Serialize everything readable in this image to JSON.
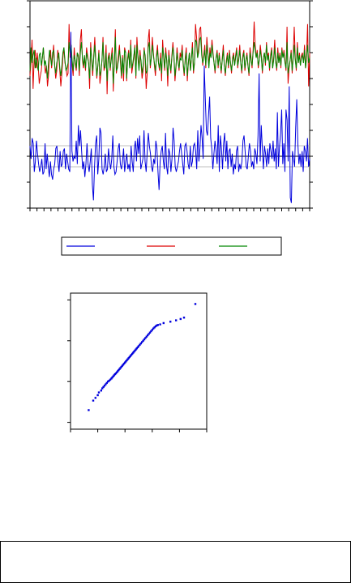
{
  "chart_data": [
    {
      "type": "line",
      "title": "",
      "xlabel": "",
      "ylabel": "",
      "left_axis": {
        "label": "",
        "ticks": []
      },
      "right_axis": {
        "label": "",
        "ticks": []
      },
      "grid": false,
      "reference_lines": [],
      "legend": {
        "placement": "bottom",
        "entries": []
      },
      "series": [
        {
          "axis": "left",
          "color": "#0000dd",
          "values": [
            0.4,
            -0.1,
            0.7,
            0.5,
            -0.6,
            -0.2,
            0.6,
            0.1,
            -0.3,
            -0.6,
            -0.4,
            -0.1,
            -0.7,
            -0.6,
            0.5,
            -0.5,
            0.1,
            -0.4,
            -0.8,
            -0.2,
            -0.7,
            -0.9,
            -0.5,
            -0.3,
            0.3,
            0.4,
            -0.2,
            -0.6,
            0.2,
            -0.4,
            -0.3,
            0.2,
            0.3,
            -0.5,
            0.1,
            -0.2,
            -0.5,
            -0.6,
            4.8,
            0.2,
            -0.2,
            0.0,
            -0.1,
            0.6,
            -0.3,
            1.2,
            0.4,
            1.0,
            0.2,
            -0.5,
            -0.2,
            -0.8,
            -0.3,
            0.5,
            -0.3,
            -0.6,
            -0.2,
            0.3,
            -1.1,
            -1.7,
            -0.4,
            0.5,
            0.8,
            -0.7,
            -0.1,
            1.1,
            0.9,
            -0.5,
            -0.7,
            -0.4,
            0.1,
            -0.6,
            -0.5,
            0.3,
            -0.2,
            -0.5,
            -0.1,
            0.8,
            -0.4,
            -0.7,
            -0.6,
            -0.2,
            0.3,
            0.5,
            -0.3,
            -0.5,
            -0.2,
            0.3,
            -0.6,
            -0.2,
            0.1,
            -0.5,
            -0.3,
            -0.6,
            0.4,
            -0.2,
            -0.6,
            0.3,
            0.6,
            -0.2,
            0.7,
            0.1,
            0.8,
            -0.5,
            -0.3,
            -0.1,
            1.0,
            -0.2,
            -0.6,
            0.2,
            0.9,
            0.4,
            0.1,
            -0.4,
            -0.6,
            -0.1,
            -0.3,
            0.6,
            0.3,
            -0.6,
            -1.3,
            -0.2,
            0.2,
            0.4,
            -0.2,
            -0.5,
            0.9,
            -0.4,
            -0.7,
            0.3,
            0.1,
            -0.6,
            -0.1,
            1.1,
            0.6,
            -0.4,
            -0.6,
            -0.4,
            -0.2,
            0.2,
            0.5,
            0.1,
            -0.3,
            -0.7,
            0.4,
            0.5,
            0.2,
            -0.3,
            -0.5,
            0.4,
            -0.4,
            -0.2,
            0.4,
            0.5,
            0.2,
            -0.5,
            1.0,
            -0.2,
            0.3,
            1.2,
            0.7,
            -0.1,
            3.5,
            2.2,
            1.0,
            0.8,
            1.6,
            2.3,
            0.7,
            0.3,
            -0.5,
            0.1,
            0.6,
            0.2,
            -0.3,
            1.2,
            -0.6,
            0.8,
            0.3,
            -0.5,
            0.5,
            0.9,
            -0.2,
            0.6,
            -0.5,
            0.2,
            0.3,
            -0.4,
            0.1,
            -0.7,
            -0.3,
            -0.5,
            0.2,
            0.4,
            -0.6,
            -0.3,
            -0.5,
            -0.2,
            0.6,
            0.8,
            0.2,
            -0.4,
            -0.5,
            0.0,
            0.5,
            0.2,
            -0.4,
            -0.2,
            -0.5,
            0.3,
            0.1,
            -0.3,
            0.8,
            3.2,
            -0.2,
            1.2,
            0.3,
            -0.5,
            0.4,
            0.1,
            -0.4,
            0.3,
            -0.3,
            0.5,
            0.2,
            -0.1,
            0.6,
            -0.2,
            0.3,
            -0.5,
            1.7,
            -0.4,
            0.4,
            0.9,
            1.8,
            -0.3,
            0.5,
            -0.6,
            1.8,
            1.4,
            -0.2,
            2.7,
            -1.6,
            -1.8,
            0.2,
            -0.1,
            -0.4,
            1.1,
            2.2,
            0.5,
            -0.3,
            0.1,
            -0.4,
            0.2,
            -0.6,
            0.4,
            0.2,
            -0.2,
            0.7,
            -0.4,
            -0.1
          ]
        },
        {
          "axis": "right",
          "color": "#dd0000",
          "values": [
            5.1,
            5.7,
            6.5,
            4.6,
            5.7,
            6.1,
            5.4,
            6.0,
            5.5,
            4.8,
            5.1,
            5.3,
            5.8,
            6.2,
            5.6,
            5.2,
            5.5,
            4.7,
            5.1,
            5.9,
            6.1,
            5.4,
            5.8,
            6.3,
            5.5,
            5.0,
            5.3,
            6.1,
            5.8,
            5.3,
            4.7,
            5.2,
            5.8,
            6.2,
            5.6,
            5.4,
            5.1,
            5.2,
            7.1,
            5.8,
            6.3,
            5.5,
            5.1,
            6.2,
            5.6,
            5.3,
            6.0,
            5.8,
            5.1,
            6.5,
            6.9,
            5.7,
            5.4,
            5.8,
            5.3,
            6.2,
            5.9,
            5.6,
            4.6,
            6.4,
            5.7,
            5.1,
            5.9,
            6.6,
            5.7,
            5.0,
            5.5,
            6.1,
            4.8,
            5.2,
            5.7,
            6.6,
            5.3,
            5.5,
            6.3,
            4.4,
            5.8,
            6.0,
            5.3,
            5.8,
            6.2,
            4.5,
            5.7,
            6.9,
            5.2,
            5.5,
            5.9,
            6.3,
            5.6,
            5.0,
            5.9,
            4.9,
            6.2,
            6.0,
            4.9,
            5.8,
            6.1,
            5.4,
            6.5,
            5.2,
            5.5,
            5.8,
            6.3,
            5.0,
            6.6,
            5.9,
            5.4,
            6.1,
            5.6,
            5.0,
            5.3,
            6.2,
            5.8,
            4.6,
            5.2,
            6.5,
            6.9,
            5.4,
            5.8,
            6.6,
            6.0,
            5.5,
            5.1,
            5.9,
            6.3,
            5.6,
            5.3,
            6.0,
            4.9,
            6.5,
            5.8,
            5.3,
            6.2,
            5.7,
            4.7,
            6.1,
            5.6,
            5.2,
            5.9,
            6.4,
            5.8,
            4.9,
            5.4,
            6.2,
            5.7,
            5.3,
            6.0,
            5.8,
            6.3,
            5.5,
            5.1,
            5.8,
            6.2,
            4.9,
            5.6,
            6.0,
            5.3,
            5.8,
            6.4,
            5.2,
            5.6,
            7.1,
            6.6,
            5.8,
            6.2,
            6.9,
            7.0,
            6.1,
            5.5,
            5.9,
            6.3,
            5.4,
            6.6,
            6.0,
            5.5,
            6.2,
            5.8,
            6.5,
            6.0,
            5.6,
            5.2,
            5.8,
            6.1,
            5.4,
            6.0,
            5.6,
            5.2,
            5.8,
            6.3,
            5.5,
            5.1,
            5.7,
            6.0,
            5.4,
            6.1,
            5.6,
            5.2,
            5.8,
            6.0,
            5.5,
            5.9,
            6.2,
            5.4,
            5.8,
            6.3,
            5.6,
            5.2,
            5.9,
            6.1,
            5.3,
            5.7,
            6.0,
            5.5,
            5.1,
            6.2,
            5.8,
            5.4,
            6.1,
            7.2,
            6.3,
            5.8,
            6.1,
            5.4,
            5.7,
            6.3,
            5.9,
            5.2,
            5.8,
            6.0,
            5.5,
            6.4,
            5.8,
            6.0,
            5.3,
            5.9,
            6.2,
            5.4,
            5.8,
            6.5,
            5.7,
            5.3,
            6.2,
            5.6,
            6.0,
            5.4,
            6.2,
            5.8,
            6.1,
            5.7,
            5.3,
            7.0,
            4.8,
            5.4,
            5.7,
            6.1,
            5.2,
            5.9,
            7.0,
            5.8,
            5.3,
            6.4,
            5.6,
            6.0,
            5.5,
            5.9,
            6.0,
            5.6,
            6.3,
            5.4,
            5.9,
            7.1,
            4.7,
            6.0
          ]
        },
        {
          "axis": "right",
          "color": "#008800",
          "values": [
            5.3,
            6.2,
            5.6,
            5.9,
            6.1,
            5.4,
            5.8,
            5.5,
            5.3,
            5.9,
            6.0,
            5.5,
            5.8,
            6.2,
            5.5,
            5.7,
            5.4,
            5.0,
            5.6,
            6.1,
            5.8,
            5.5,
            6.0,
            6.1,
            5.5,
            5.2,
            5.6,
            5.8,
            6.0,
            5.4,
            5.1,
            5.5,
            6.0,
            6.2,
            5.7,
            5.3,
            5.4,
            5.6,
            6.4,
            6.0,
            6.3,
            5.7,
            5.3,
            5.9,
            5.7,
            5.4,
            6.0,
            5.9,
            5.3,
            6.0,
            6.4,
            5.8,
            5.5,
            5.9,
            5.4,
            6.0,
            5.8,
            5.6,
            5.0,
            6.2,
            5.8,
            5.3,
            5.8,
            6.3,
            5.6,
            5.1,
            5.5,
            6.0,
            5.1,
            5.3,
            5.7,
            6.4,
            5.5,
            5.4,
            6.0,
            4.9,
            5.7,
            5.9,
            5.4,
            5.7,
            6.0,
            4.8,
            5.5,
            6.6,
            5.3,
            5.4,
            5.7,
            6.1,
            5.8,
            5.1,
            5.8,
            5.2,
            6.1,
            6.0,
            5.0,
            5.7,
            6.0,
            5.4,
            6.3,
            5.4,
            5.6,
            5.9,
            6.2,
            5.1,
            6.3,
            5.8,
            5.3,
            5.9,
            5.7,
            5.2,
            5.5,
            6.1,
            5.9,
            5.2,
            5.3,
            6.2,
            6.4,
            5.5,
            5.8,
            6.3,
            5.9,
            5.6,
            5.3,
            5.8,
            6.1,
            5.6,
            5.4,
            5.8,
            5.2,
            6.2,
            5.9,
            5.4,
            6.0,
            5.7,
            5.1,
            5.9,
            5.6,
            5.3,
            5.8,
            6.2,
            5.9,
            5.1,
            5.5,
            6.0,
            5.6,
            5.4,
            5.8,
            5.7,
            6.1,
            5.6,
            5.2,
            5.7,
            6.0,
            5.1,
            5.6,
            6.0,
            5.3,
            5.8,
            6.2,
            5.3,
            5.6,
            6.5,
            6.4,
            5.8,
            6.0,
            6.5,
            6.6,
            5.9,
            5.6,
            5.8,
            6.1,
            5.5,
            6.3,
            5.9,
            5.4,
            6.0,
            5.8,
            6.3,
            5.9,
            5.6,
            5.3,
            5.8,
            6.0,
            5.5,
            5.9,
            5.6,
            5.3,
            5.7,
            6.1,
            5.5,
            5.2,
            5.6,
            5.9,
            5.5,
            6.0,
            5.6,
            5.3,
            5.7,
            5.9,
            5.5,
            5.8,
            6.1,
            5.5,
            5.7,
            6.1,
            5.6,
            5.3,
            5.8,
            6.0,
            5.4,
            5.7,
            5.9,
            5.5,
            5.2,
            6.0,
            5.7,
            5.5,
            6.0,
            6.4,
            6.1,
            5.8,
            6.0,
            5.5,
            5.7,
            6.1,
            5.8,
            5.3,
            5.8,
            6.0,
            5.6,
            6.3,
            5.7,
            5.9,
            5.4,
            5.8,
            6.1,
            5.4,
            5.7,
            6.2,
            5.6,
            5.4,
            6.0,
            5.6,
            5.9,
            5.5,
            6.1,
            5.8,
            6.0,
            5.6,
            5.4,
            6.4,
            5.2,
            5.5,
            5.7,
            6.0,
            5.3,
            5.8,
            6.3,
            5.7,
            5.4,
            6.2,
            5.6,
            5.9,
            5.5,
            5.8,
            5.9,
            5.6,
            6.1,
            5.4,
            5.8,
            6.3,
            5.6,
            5.8
          ]
        }
      ]
    },
    {
      "type": "scatter",
      "title": "",
      "xlabel": "",
      "ylabel": "",
      "grid": false,
      "color": "#0000dd",
      "points": [
        [
          -1.7,
          -1.8
        ],
        [
          -1.5,
          -1.45
        ],
        [
          -1.4,
          -1.35
        ],
        [
          -1.3,
          -1.25
        ],
        [
          -1.25,
          -1.15
        ],
        [
          -1.15,
          -1.08
        ],
        [
          -1.1,
          -1.0
        ],
        [
          -1.05,
          -0.95
        ],
        [
          -1.0,
          -0.9
        ],
        [
          -0.95,
          -0.85
        ],
        [
          -0.9,
          -0.8
        ],
        [
          -0.85,
          -0.75
        ],
        [
          -0.8,
          -0.72
        ],
        [
          -0.75,
          -0.68
        ],
        [
          -0.7,
          -0.64
        ],
        [
          -0.66,
          -0.6
        ],
        [
          -0.62,
          -0.56
        ],
        [
          -0.58,
          -0.52
        ],
        [
          -0.54,
          -0.48
        ],
        [
          -0.5,
          -0.45
        ],
        [
          -0.46,
          -0.41
        ],
        [
          -0.42,
          -0.37
        ],
        [
          -0.38,
          -0.33
        ],
        [
          -0.34,
          -0.29
        ],
        [
          -0.3,
          -0.25
        ],
        [
          -0.26,
          -0.21
        ],
        [
          -0.22,
          -0.17
        ],
        [
          -0.18,
          -0.13
        ],
        [
          -0.14,
          -0.09
        ],
        [
          -0.1,
          -0.05
        ],
        [
          -0.06,
          -0.01
        ],
        [
          -0.02,
          0.03
        ],
        [
          0.02,
          0.07
        ],
        [
          0.06,
          0.11
        ],
        [
          0.1,
          0.15
        ],
        [
          0.14,
          0.19
        ],
        [
          0.18,
          0.23
        ],
        [
          0.22,
          0.27
        ],
        [
          0.26,
          0.31
        ],
        [
          0.3,
          0.35
        ],
        [
          0.34,
          0.39
        ],
        [
          0.38,
          0.43
        ],
        [
          0.42,
          0.47
        ],
        [
          0.46,
          0.51
        ],
        [
          0.5,
          0.55
        ],
        [
          0.55,
          0.6
        ],
        [
          0.6,
          0.65
        ],
        [
          0.65,
          0.7
        ],
        [
          0.7,
          0.75
        ],
        [
          0.75,
          0.8
        ],
        [
          0.8,
          0.85
        ],
        [
          0.85,
          0.9
        ],
        [
          0.9,
          0.95
        ],
        [
          0.95,
          1.0
        ],
        [
          1.0,
          1.05
        ],
        [
          1.05,
          1.1
        ],
        [
          1.1,
          1.15
        ],
        [
          1.15,
          1.2
        ],
        [
          1.2,
          1.24
        ],
        [
          1.25,
          1.28
        ],
        [
          1.3,
          1.31
        ],
        [
          1.35,
          1.33
        ],
        [
          1.45,
          1.35
        ],
        [
          1.6,
          1.4
        ],
        [
          1.9,
          1.45
        ],
        [
          2.15,
          1.5
        ],
        [
          2.35,
          1.55
        ],
        [
          2.5,
          1.6
        ],
        [
          3.0,
          2.1
        ]
      ]
    }
  ]
}
